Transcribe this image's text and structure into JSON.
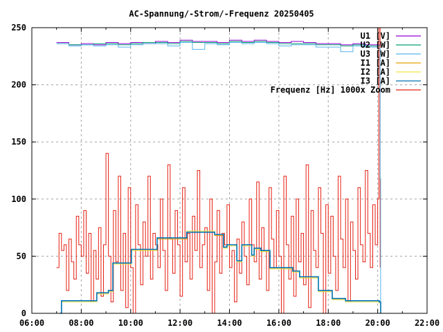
{
  "chart_data": {
    "type": "line",
    "title": "AC-Spannung/-Strom/-Frequenz 20250405",
    "xlabel": "",
    "ylabel": "",
    "xlim": [
      6,
      22
    ],
    "ylim": [
      0,
      250
    ],
    "x_ticks": [
      6,
      8,
      10,
      12,
      14,
      16,
      18,
      20,
      22
    ],
    "x_tick_labels": [
      "06:00",
      "08:00",
      "10:00",
      "12:00",
      "14:00",
      "16:00",
      "18:00",
      "20:00",
      "22:00"
    ],
    "y_ticks": [
      0,
      50,
      100,
      150,
      200,
      250
    ],
    "y_tick_labels": [
      "0",
      "50",
      "100",
      "150",
      "200",
      "250"
    ],
    "grid": true,
    "legend_position": "top-right",
    "series": [
      {
        "name": "U1 [V]",
        "color": "#9400d3",
        "x": [
          7.0,
          7.5,
          8.0,
          8.5,
          9.0,
          9.5,
          10.0,
          10.5,
          11.0,
          11.5,
          12.0,
          12.5,
          13.0,
          13.5,
          14.0,
          14.5,
          15.0,
          15.5,
          16.0,
          16.5,
          17.0,
          17.5,
          18.0,
          18.5,
          19.0,
          19.5,
          20.0,
          20.1
        ],
        "y": [
          237,
          235,
          236,
          235,
          237,
          236,
          237,
          236,
          238,
          237,
          239,
          238,
          238,
          237,
          239,
          238,
          239,
          238,
          237,
          238,
          237,
          236,
          236,
          235,
          236,
          235,
          235,
          235
        ]
      },
      {
        "name": "U2 [W]",
        "color": "#009e73",
        "x": [
          7.0,
          7.5,
          8.0,
          8.5,
          9.0,
          9.5,
          10.0,
          10.5,
          11.0,
          11.5,
          12.0,
          12.5,
          13.0,
          13.5,
          14.0,
          14.5,
          15.0,
          15.5,
          16.0,
          16.5,
          17.0,
          17.5,
          18.0,
          18.5,
          19.0,
          19.5,
          20.0,
          20.1
        ],
        "y": [
          236,
          235,
          235,
          236,
          236,
          235,
          236,
          237,
          237,
          236,
          238,
          237,
          237,
          236,
          238,
          237,
          238,
          237,
          236,
          236,
          236,
          235,
          235,
          234,
          235,
          234,
          234,
          234
        ]
      },
      {
        "name": "U3 [W]",
        "color": "#56b4e9",
        "x": [
          7.0,
          7.5,
          8.0,
          8.5,
          9.0,
          9.5,
          10.0,
          10.5,
          11.0,
          11.5,
          12.0,
          12.5,
          13.0,
          13.5,
          14.0,
          14.5,
          15.0,
          15.5,
          16.0,
          16.5,
          17.0,
          17.5,
          18.0,
          18.5,
          19.0,
          19.5,
          20.0,
          20.1,
          20.12
        ],
        "y": [
          236,
          234,
          235,
          234,
          235,
          233,
          235,
          236,
          236,
          234,
          237,
          231,
          236,
          235,
          237,
          236,
          237,
          236,
          234,
          235,
          235,
          233,
          233,
          229,
          234,
          233,
          232,
          118,
          0
        ]
      },
      {
        "name": "I1 [A]",
        "color": "#e69f00",
        "x": [
          7.14,
          7.2,
          8.5,
          8.63,
          9.1,
          9.28,
          10.03,
          11.07,
          12.27,
          13.4,
          13.76,
          13.9,
          14.3,
          14.5,
          14.9,
          15.0,
          15.27,
          15.64,
          16.56,
          16.84,
          17.6,
          18.16,
          18.7,
          20.06,
          20.12
        ],
        "y": [
          0,
          10,
          11,
          17,
          20,
          43,
          55,
          65,
          71,
          68,
          57,
          59,
          45,
          59,
          50,
          56,
          54,
          39,
          36,
          31,
          19,
          12,
          10,
          10,
          0
        ]
      },
      {
        "name": "I2 [A]",
        "color": "#f0e442",
        "x": [
          7.14,
          7.2,
          8.5,
          8.63,
          9.1,
          9.28,
          10.03,
          11.07,
          12.27,
          13.4,
          13.76,
          13.9,
          14.3,
          14.5,
          14.9,
          15.0,
          15.27,
          15.64,
          16.56,
          16.84,
          17.6,
          18.16,
          18.7,
          20.06,
          20.12
        ],
        "y": [
          0,
          10,
          10,
          17,
          19,
          43,
          55,
          66,
          72,
          69,
          57,
          59,
          45,
          59,
          50,
          56,
          54,
          39,
          36,
          31,
          19,
          12,
          10,
          9,
          0
        ]
      },
      {
        "name": "I3 [A]",
        "color": "#0072b2",
        "x": [
          7.14,
          7.2,
          8.5,
          8.63,
          9.1,
          9.28,
          10.03,
          11.07,
          12.27,
          13.4,
          13.76,
          13.9,
          14.3,
          14.5,
          14.9,
          15.0,
          15.27,
          15.64,
          16.56,
          16.84,
          17.6,
          18.16,
          18.7,
          20.06,
          20.12
        ],
        "y": [
          0,
          11,
          11,
          18,
          20,
          44,
          56,
          66,
          71,
          69,
          58,
          60,
          46,
          60,
          51,
          57,
          55,
          40,
          37,
          32,
          20,
          13,
          11,
          10,
          0
        ]
      },
      {
        "name": "Frequenz [Hz] 1000x Zoom",
        "color": "#e51e10",
        "x": [
          7.0,
          7.1,
          7.2,
          7.3,
          7.4,
          7.5,
          7.6,
          7.7,
          7.8,
          7.9,
          8.0,
          8.1,
          8.2,
          8.3,
          8.4,
          8.5,
          8.6,
          8.7,
          8.8,
          8.9,
          9.0,
          9.1,
          9.2,
          9.3,
          9.4,
          9.5,
          9.6,
          9.7,
          9.8,
          9.9,
          10.0,
          10.1,
          10.2,
          10.3,
          10.4,
          10.5,
          10.6,
          10.7,
          10.8,
          10.9,
          11.0,
          11.1,
          11.2,
          11.3,
          11.4,
          11.5,
          11.6,
          11.7,
          11.8,
          11.9,
          12.0,
          12.1,
          12.2,
          12.3,
          12.4,
          12.5,
          12.6,
          12.7,
          12.8,
          12.9,
          13.0,
          13.1,
          13.2,
          13.3,
          13.4,
          13.5,
          13.6,
          13.7,
          13.8,
          13.9,
          14.0,
          14.1,
          14.2,
          14.3,
          14.4,
          14.5,
          14.6,
          14.7,
          14.8,
          14.9,
          15.0,
          15.1,
          15.2,
          15.3,
          15.4,
          15.5,
          15.6,
          15.7,
          15.8,
          15.9,
          16.0,
          16.1,
          16.2,
          16.3,
          16.4,
          16.5,
          16.6,
          16.7,
          16.8,
          16.9,
          17.0,
          17.1,
          17.2,
          17.3,
          17.4,
          17.5,
          17.6,
          17.7,
          17.8,
          17.9,
          18.0,
          18.1,
          18.2,
          18.3,
          18.4,
          18.5,
          18.6,
          18.7,
          18.8,
          18.9,
          19.0,
          19.1,
          19.2,
          19.3,
          19.4,
          19.5,
          19.6,
          19.7,
          19.8,
          19.9,
          20.0,
          20.05,
          20.1
        ],
        "y": [
          40,
          70,
          55,
          60,
          20,
          65,
          45,
          30,
          85,
          60,
          50,
          90,
          35,
          70,
          10,
          55,
          30,
          75,
          15,
          60,
          140,
          50,
          10,
          90,
          45,
          120,
          20,
          70,
          5,
          110,
          40,
          0,
          95,
          60,
          25,
          80,
          50,
          120,
          30,
          70,
          60,
          40,
          100,
          55,
          20,
          130,
          65,
          35,
          90,
          60,
          15,
          110,
          45,
          70,
          30,
          85,
          55,
          125,
          40,
          60,
          75,
          20,
          100,
          0,
          45,
          90,
          35,
          70,
          60,
          95,
          40,
          55,
          10,
          65,
          35,
          80,
          50,
          25,
          100,
          60,
          45,
          115,
          30,
          75,
          55,
          20,
          110,
          65,
          40,
          90,
          50,
          0,
          120,
          60,
          30,
          85,
          15,
          100,
          45,
          70,
          25,
          130,
          5,
          90,
          55,
          40,
          110,
          70,
          0,
          95,
          35,
          85,
          50,
          20,
          120,
          65,
          40,
          100,
          10,
          80,
          55,
          30,
          110,
          60,
          45,
          125,
          70,
          40,
          95,
          60,
          100,
          250,
          40
        ]
      }
    ]
  }
}
